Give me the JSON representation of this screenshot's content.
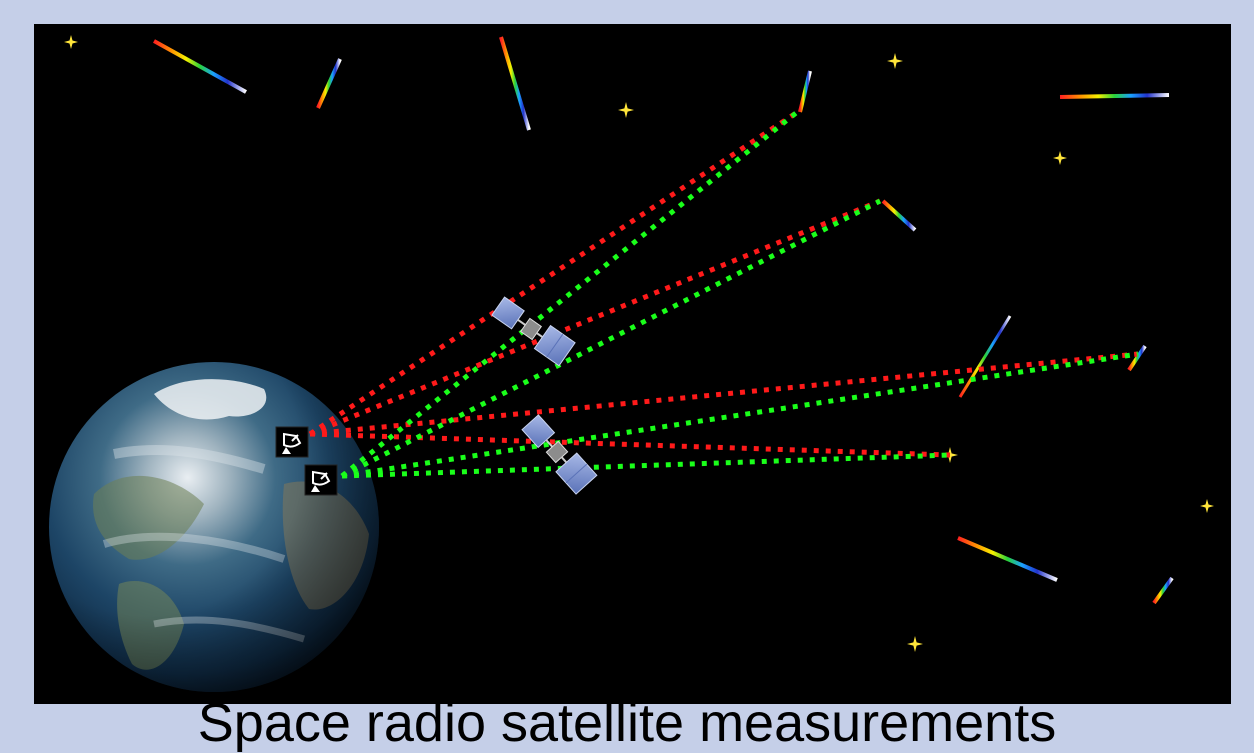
{
  "caption": "Space radio satellite measurements",
  "colors": {
    "background": "#c5cfe8",
    "space": "#000000",
    "beam_red": "#ff1a1a",
    "beam_green": "#1aff1a",
    "star": "#ffe53a",
    "antenna_box": "#000000",
    "antenna_glyph": "#ffffff",
    "satellite_panel": "#7f99d6"
  },
  "objects": {
    "earth": "earth-globe",
    "ground_stations": [
      "radio-telescope-icon",
      "radio-telescope-icon"
    ],
    "satellites": [
      "satellite-icon",
      "satellite-icon"
    ],
    "stars": [
      "star-icon",
      "star-icon",
      "star-icon",
      "star-icon",
      "star-icon",
      "star-icon",
      "star-icon"
    ],
    "meteors": [
      "spectrum-streak",
      "spectrum-streak",
      "spectrum-streak",
      "spectrum-streak",
      "spectrum-streak",
      "spectrum-streak",
      "spectrum-streak",
      "spectrum-streak",
      "spectrum-streak",
      "spectrum-streak"
    ]
  }
}
